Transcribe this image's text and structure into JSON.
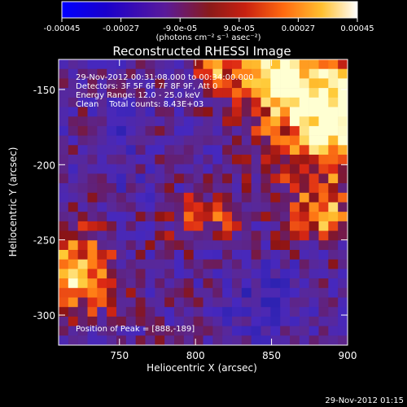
{
  "chart_data": {
    "type": "heatmap",
    "title": "Reconstructed RHESSI Image",
    "xlabel": "Heliocentric X (arcsec)",
    "ylabel": "Heliocentric Y (arcsec)",
    "xlim": [
      710,
      900
    ],
    "ylim": [
      -320,
      -130
    ],
    "x_ticks": [
      750,
      800,
      850,
      900
    ],
    "y_ticks": [
      -150,
      -200,
      -250,
      -300
    ],
    "colorbar": {
      "ticks": [
        "-0.00045",
        "-0.00027",
        "-9.0e-05",
        "9.0e-05",
        "0.00027",
        "0.00045"
      ],
      "unit_label": "(photons cm⁻² s⁻¹ asec⁻²)",
      "range": [
        -0.00045,
        0.00045
      ]
    },
    "annotations": {
      "time_range": "29-Nov-2012 00:31:08.000 to 00:34:00.000",
      "detectors": "Detectors: 3F 5F 6F 7F 8F 9F, Att 0",
      "energy": "Energy Range: 12.0 - 25.0 keV",
      "method": "Clean    Total counts: 8.43E+03",
      "peak": "Position of Peak = [888,-189]"
    },
    "timestamp": "29-Nov-2012 01:15",
    "colormap": [
      "#000000",
      "#1a0066",
      "#2b22cc",
      "#5522b0",
      "#7a2a8a",
      "#a0201a",
      "#e83010",
      "#ff8c10",
      "#ffd030",
      "#ffffd8"
    ]
  }
}
